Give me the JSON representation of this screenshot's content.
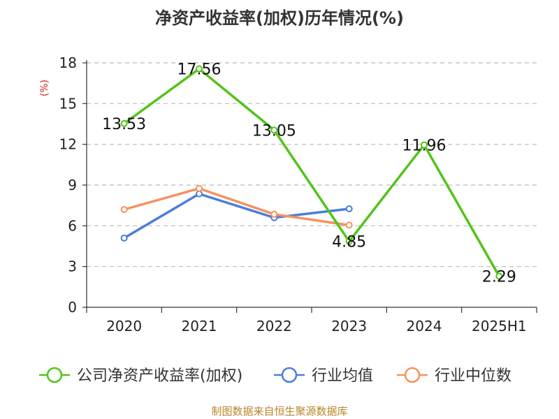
{
  "chart_data": {
    "type": "line",
    "title": "净资产收益率(加权)历年情况(%)",
    "ylabel": "(%)",
    "categories": [
      "2020",
      "2021",
      "2022",
      "2023",
      "2024",
      "2025H1"
    ],
    "ylim": [
      0,
      18
    ],
    "yticks": [
      "0",
      "3",
      "6",
      "9",
      "12",
      "15",
      "18"
    ],
    "grid": "horizontal-dashed",
    "legend_position": "bottom",
    "series": [
      {
        "name": "公司净资产收益率(加权)",
        "color": "#52c41a",
        "values": [
          13.53,
          17.56,
          13.05,
          4.85,
          11.96,
          2.29
        ],
        "labels": [
          "13.53",
          "17.56",
          "13.05",
          "4.85",
          "11.96",
          "2.29"
        ]
      },
      {
        "name": "行业均值",
        "color": "#4a7fd9",
        "values": [
          5.1,
          8.35,
          6.6,
          7.25,
          null,
          null
        ]
      },
      {
        "name": "行业中位数",
        "color": "#f5925e",
        "values": [
          7.2,
          8.75,
          6.85,
          6.05,
          null,
          null
        ]
      }
    ],
    "source": "制图数据来自恒生聚源数据库"
  }
}
